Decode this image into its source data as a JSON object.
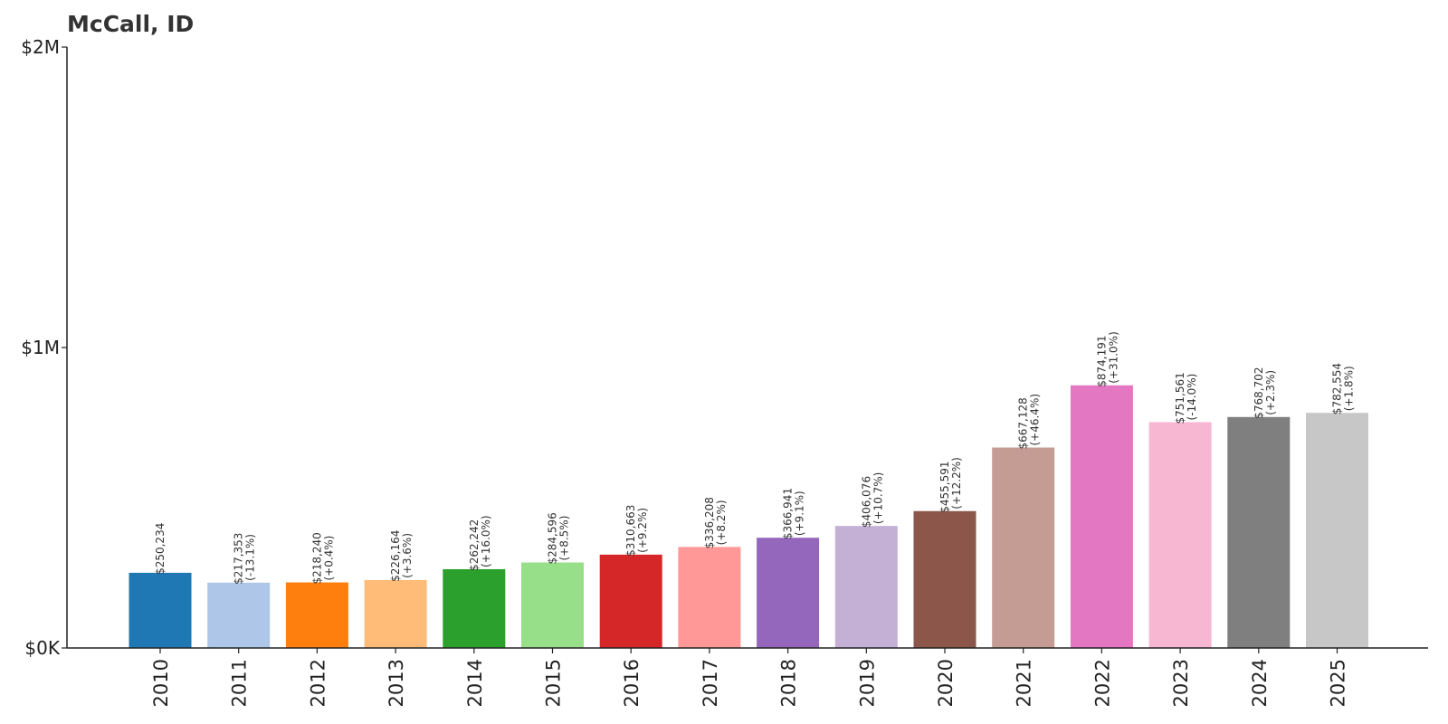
{
  "chart_data": {
    "type": "bar",
    "title": "McCall, ID",
    "xlabel": "",
    "ylabel": "",
    "ylim": [
      0,
      2000000
    ],
    "yticks": [
      {
        "value": 0,
        "label": "$0K"
      },
      {
        "value": 1000000,
        "label": "$1M"
      },
      {
        "value": 2000000,
        "label": "$2M"
      }
    ],
    "grid": false,
    "categories": [
      "2010",
      "2011",
      "2012",
      "2013",
      "2014",
      "2015",
      "2016",
      "2017",
      "2018",
      "2019",
      "2020",
      "2021",
      "2022",
      "2023",
      "2024",
      "2025"
    ],
    "values": [
      250234,
      217353,
      218240,
      226164,
      262242,
      284596,
      310663,
      336208,
      366941,
      406076,
      455591,
      667128,
      874191,
      751561,
      768702,
      782554
    ],
    "value_labels": [
      "$250,234",
      "$217,353",
      "$218,240",
      "$226,164",
      "$262,242",
      "$284,596",
      "$310,663",
      "$336,208",
      "$366,941",
      "$406,076",
      "$455,591",
      "$667,128",
      "$874,191",
      "$751,561",
      "$768,702",
      "$782,554"
    ],
    "change_labels": [
      "",
      "(-13.1%)",
      "(+0.4%)",
      "(+3.6%)",
      "(+16.0%)",
      "(+8.5%)",
      "(+9.2%)",
      "(+8.2%)",
      "(+9.1%)",
      "(+10.7%)",
      "(+12.2%)",
      "(+46.4%)",
      "(+31.0%)",
      "(-14.0%)",
      "(+2.3%)",
      "(+1.8%)"
    ],
    "colors": [
      "#1f77b4",
      "#aec7e8",
      "#ff7f0e",
      "#ffbb78",
      "#2ca02c",
      "#98df8a",
      "#d62728",
      "#ff9896",
      "#9467bd",
      "#c5b0d5",
      "#8c564b",
      "#c49c94",
      "#e377c2",
      "#f7b6d2",
      "#7f7f7f",
      "#c7c7c7"
    ]
  }
}
